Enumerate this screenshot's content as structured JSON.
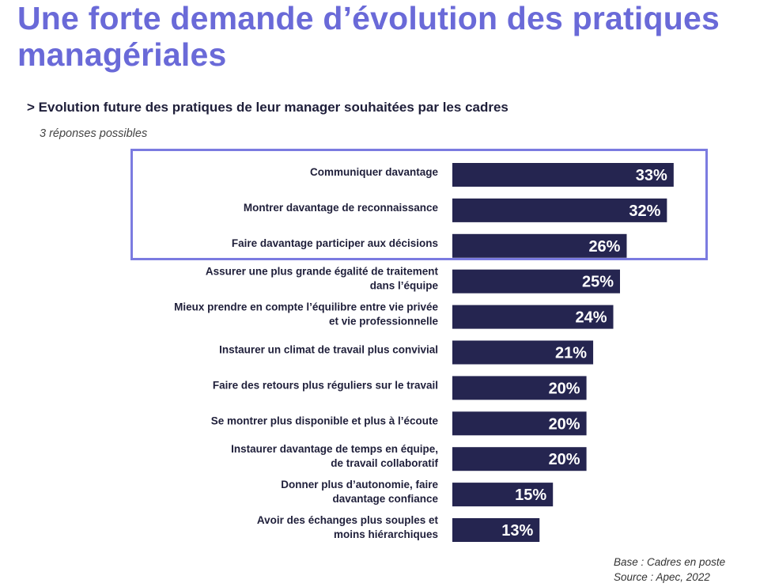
{
  "title": "Une forte demande d’évolution des pratiques managériales",
  "subtitle": "> Evolution future des pratiques de leur manager souhaitées par les cadres",
  "note": "3 réponses possibles",
  "source": {
    "base": "Base : Cadres en poste",
    "source": "Source : Apec, 2022"
  },
  "colors": {
    "title": "#6a6ad8",
    "bar": "#252550",
    "highlight_border": "#7b7be0"
  },
  "chart_data": {
    "type": "bar",
    "orientation": "horizontal",
    "categories": [
      [
        "Communiquer davantage"
      ],
      [
        "Montrer davantage de reconnaissance"
      ],
      [
        "Faire davantage participer aux décisions"
      ],
      [
        "Assurer une plus grande égalité de traitement",
        "dans l’équipe"
      ],
      [
        "Mieux prendre en compte l’équilibre entre vie privée",
        "et vie professionnelle"
      ],
      [
        "Instaurer un climat de travail plus convivial"
      ],
      [
        "Faire des retours plus réguliers sur le travail"
      ],
      [
        "Se montrer plus disponible et plus à l’écoute"
      ],
      [
        "Instaurer davantage de temps en équipe,",
        "de travail collaboratif"
      ],
      [
        "Donner plus d’autonomie, faire",
        "davantage confiance"
      ],
      [
        "Avoir des échanges plus souples et",
        "moins hiérarchiques"
      ]
    ],
    "values": [
      33,
      32,
      26,
      25,
      24,
      21,
      20,
      20,
      20,
      15,
      13
    ],
    "value_labels": [
      "33%",
      "32%",
      "26%",
      "25%",
      "24%",
      "21%",
      "20%",
      "20%",
      "20%",
      "15%",
      "13%"
    ],
    "unit": "%",
    "highlighted_top": 3
  }
}
